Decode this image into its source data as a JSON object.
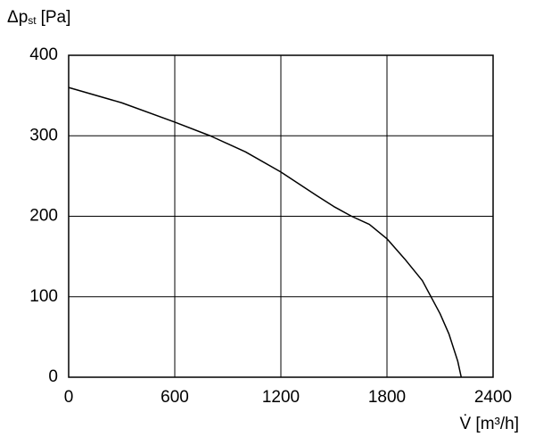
{
  "chart_data": {
    "type": "line",
    "ylabel": {
      "main": "Δp",
      "sub": "st",
      "unit": "[Pa]"
    },
    "xlabel": "V̇ [m³/h]",
    "x": [
      0,
      300,
      600,
      800,
      1000,
      1200,
      1400,
      1500,
      1600,
      1700,
      1800,
      1900,
      2000,
      2100,
      2150,
      2200,
      2220
    ],
    "series": [
      {
        "color": "#000000",
        "values": [
          360,
          341,
          317,
          300,
          280,
          255,
          226,
          212,
          200,
          190,
          172,
          147,
          120,
          79,
          54,
          20,
          0
        ]
      }
    ],
    "xlim": [
      0,
      2400
    ],
    "xticks": [
      0,
      600,
      1200,
      1800,
      2400
    ],
    "ylim": [
      0,
      400
    ],
    "yticks": [
      0,
      100,
      200,
      300,
      400
    ],
    "grid": true
  }
}
